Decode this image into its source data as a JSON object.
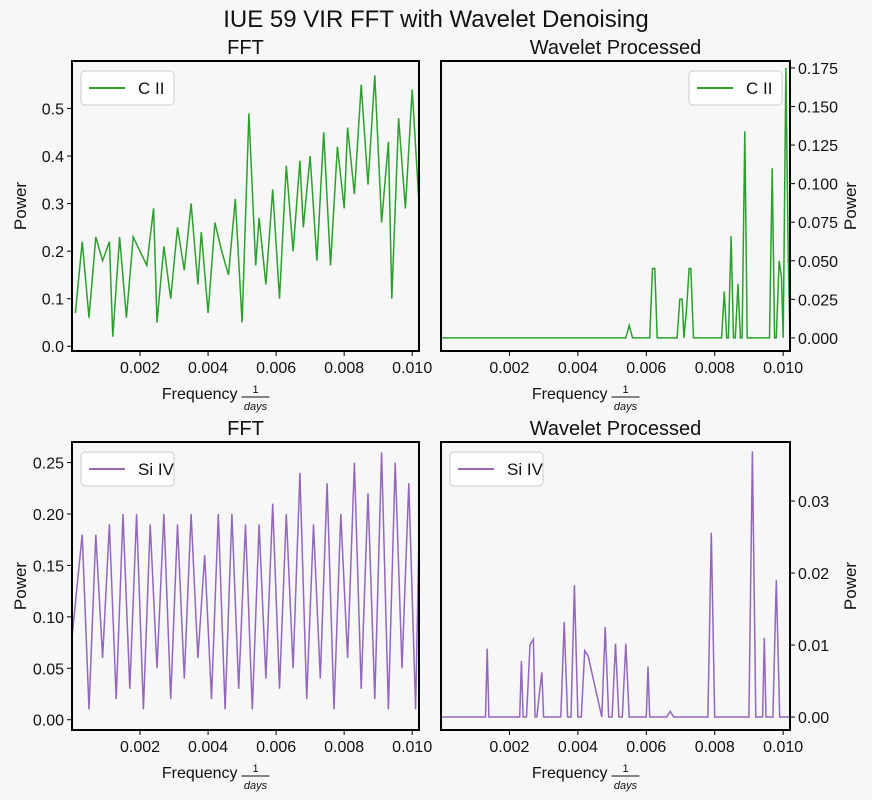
{
  "figure": {
    "title": "IUE 59 VIR FFT with Wavelet Denoising"
  },
  "colors": {
    "c2": "#2ca02c",
    "si4": "#9467bd"
  },
  "chart_data": [
    {
      "type": "line",
      "title": "FFT",
      "xlabel": "Frequency",
      "xlabel_frac_num": "1",
      "xlabel_frac_den": "days",
      "ylabel": "Power",
      "xlim": [
        0.0,
        0.0102
      ],
      "ylim": [
        -0.01,
        0.6
      ],
      "xticks": [
        0.002,
        0.004,
        0.006,
        0.008,
        0.01
      ],
      "xtick_labels": [
        "0.002",
        "0.004",
        "0.006",
        "0.008",
        "0.010"
      ],
      "yticks": [
        0.0,
        0.1,
        0.2,
        0.3,
        0.4,
        0.5
      ],
      "ytick_labels": [
        "0.0",
        "0.1",
        "0.2",
        "0.3",
        "0.4",
        "0.5"
      ],
      "yaxis_side": "left",
      "legend": "top-left",
      "series": [
        {
          "name": "C II",
          "color": "#2ca02c",
          "x": [
            0.0001,
            0.0003,
            0.0005,
            0.0007,
            0.0009,
            0.0011,
            0.0012,
            0.0014,
            0.0016,
            0.0018,
            0.002,
            0.0022,
            0.0024,
            0.0025,
            0.0027,
            0.0029,
            0.0031,
            0.0033,
            0.0035,
            0.0037,
            0.0038,
            0.004,
            0.0042,
            0.0044,
            0.0046,
            0.0048,
            0.005,
            0.0052,
            0.0054,
            0.0055,
            0.0057,
            0.0059,
            0.0061,
            0.0063,
            0.0065,
            0.0067,
            0.0068,
            0.007,
            0.0072,
            0.0074,
            0.0076,
            0.0078,
            0.008,
            0.0081,
            0.0083,
            0.0085,
            0.0087,
            0.0089,
            0.0091,
            0.0093,
            0.0094,
            0.0096,
            0.0098,
            0.01,
            0.0102
          ],
          "values": [
            0.07,
            0.22,
            0.06,
            0.23,
            0.18,
            0.22,
            0.02,
            0.23,
            0.06,
            0.23,
            0.2,
            0.17,
            0.29,
            0.05,
            0.21,
            0.1,
            0.25,
            0.16,
            0.3,
            0.13,
            0.24,
            0.07,
            0.26,
            0.2,
            0.15,
            0.31,
            0.05,
            0.49,
            0.17,
            0.27,
            0.13,
            0.33,
            0.1,
            0.38,
            0.2,
            0.39,
            0.25,
            0.4,
            0.18,
            0.45,
            0.17,
            0.42,
            0.29,
            0.46,
            0.32,
            0.55,
            0.34,
            0.57,
            0.26,
            0.43,
            0.1,
            0.48,
            0.29,
            0.54,
            0.3
          ]
        }
      ]
    },
    {
      "type": "line",
      "title": "Wavelet Processed",
      "xlabel": "Frequency",
      "xlabel_frac_num": "1",
      "xlabel_frac_den": "days",
      "ylabel": "Power",
      "xlim": [
        0.0,
        0.0102
      ],
      "ylim": [
        -0.0085,
        0.1795
      ],
      "xticks": [
        0.002,
        0.004,
        0.006,
        0.008,
        0.01
      ],
      "xtick_labels": [
        "0.002",
        "0.004",
        "0.006",
        "0.008",
        "0.010"
      ],
      "yticks": [
        0.0,
        0.025,
        0.05,
        0.075,
        0.1,
        0.125,
        0.15,
        0.175
      ],
      "ytick_labels": [
        "0.000",
        "0.025",
        "0.050",
        "0.075",
        "0.100",
        "0.125",
        "0.150",
        "0.175"
      ],
      "yaxis_side": "right",
      "legend": "top-right",
      "series": [
        {
          "name": "C II",
          "color": "#2ca02c",
          "x": [
            0.0,
            0.0054,
            0.0055,
            0.0056,
            0.0061,
            0.00618,
            0.00625,
            0.00632,
            0.0069,
            0.00698,
            0.00705,
            0.0071,
            0.00718,
            0.00725,
            0.0073,
            0.00738,
            0.00745,
            0.0082,
            0.00828,
            0.00835,
            0.0084,
            0.00848,
            0.00855,
            0.0086,
            0.00868,
            0.00875,
            0.0088,
            0.00888,
            0.00895,
            0.0096,
            0.00968,
            0.00975,
            0.0098,
            0.00988,
            0.00995,
            0.01,
            0.01008,
            0.01015,
            0.0102
          ],
          "values": [
            0.0,
            0.0,
            0.008,
            0.0,
            0.0,
            0.045,
            0.045,
            0.0,
            0.0,
            0.025,
            0.025,
            0.0,
            0.02,
            0.045,
            0.045,
            0.0,
            0.0,
            0.0,
            0.03,
            0.0,
            0.0,
            0.066,
            0.0,
            0.0,
            0.035,
            0.0,
            0.0,
            0.134,
            0.0,
            0.0,
            0.11,
            0.0,
            0.0,
            0.05,
            0.04,
            0.0,
            0.175,
            0.05,
            0.0
          ]
        }
      ]
    },
    {
      "type": "line",
      "title": "FFT",
      "xlabel": "Frequency",
      "xlabel_frac_num": "1",
      "xlabel_frac_den": "days",
      "ylabel": "Power",
      "xlim": [
        0.0,
        0.0102
      ],
      "ylim": [
        -0.01,
        0.27
      ],
      "xticks": [
        0.002,
        0.004,
        0.006,
        0.008,
        0.01
      ],
      "xtick_labels": [
        "0.002",
        "0.004",
        "0.006",
        "0.008",
        "0.010"
      ],
      "yticks": [
        0.0,
        0.05,
        0.1,
        0.15,
        0.2,
        0.25
      ],
      "ytick_labels": [
        "0.00",
        "0.05",
        "0.10",
        "0.15",
        "0.20",
        "0.25"
      ],
      "yaxis_side": "left",
      "legend": "top-left",
      "series": [
        {
          "name": "Si IV",
          "color": "#9467bd",
          "x": [
            0.0,
            0.0003,
            0.0005,
            0.0007,
            0.0009,
            0.0011,
            0.0013,
            0.0015,
            0.0017,
            0.0019,
            0.0021,
            0.0023,
            0.0025,
            0.0027,
            0.0029,
            0.0031,
            0.0033,
            0.0035,
            0.0037,
            0.0039,
            0.0041,
            0.0043,
            0.0045,
            0.0047,
            0.0049,
            0.0051,
            0.0053,
            0.0055,
            0.0057,
            0.0059,
            0.0061,
            0.0063,
            0.0065,
            0.0067,
            0.0069,
            0.0071,
            0.0073,
            0.0075,
            0.0077,
            0.0079,
            0.0081,
            0.0083,
            0.0085,
            0.0087,
            0.0089,
            0.0091,
            0.0093,
            0.0095,
            0.0097,
            0.0099,
            0.0101,
            0.0102
          ],
          "values": [
            0.08,
            0.18,
            0.01,
            0.18,
            0.06,
            0.19,
            0.02,
            0.2,
            0.03,
            0.2,
            0.01,
            0.19,
            0.05,
            0.2,
            0.02,
            0.19,
            0.04,
            0.2,
            0.06,
            0.16,
            0.02,
            0.2,
            0.01,
            0.2,
            0.03,
            0.19,
            0.01,
            0.19,
            0.04,
            0.21,
            0.03,
            0.2,
            0.05,
            0.24,
            0.02,
            0.19,
            0.04,
            0.23,
            0.01,
            0.2,
            0.06,
            0.25,
            0.03,
            0.22,
            0.02,
            0.26,
            0.01,
            0.25,
            0.05,
            0.23,
            0.01,
            0.18
          ]
        }
      ]
    },
    {
      "type": "line",
      "title": "Wavelet Processed",
      "xlabel": "Frequency",
      "xlabel_frac_num": "1",
      "xlabel_frac_den": "days",
      "ylabel": "Power",
      "xlim": [
        0.0,
        0.0102
      ],
      "ylim": [
        -0.0018,
        0.0382
      ],
      "xticks": [
        0.002,
        0.004,
        0.006,
        0.008,
        0.01
      ],
      "xtick_labels": [
        "0.002",
        "0.004",
        "0.006",
        "0.008",
        "0.010"
      ],
      "yticks": [
        0.0,
        0.01,
        0.02,
        0.03
      ],
      "ytick_labels": [
        "0.00",
        "0.01",
        "0.02",
        "0.03"
      ],
      "yaxis_side": "right",
      "legend": "top-left",
      "series": [
        {
          "name": "Si IV",
          "color": "#9467bd",
          "x": [
            0.0,
            0.0013,
            0.00135,
            0.0014,
            0.0023,
            0.00235,
            0.0024,
            0.0025,
            0.0026,
            0.0027,
            0.00275,
            0.0028,
            0.0029,
            0.00295,
            0.003,
            0.0035,
            0.0036,
            0.0037,
            0.0038,
            0.0039,
            0.004,
            0.0041,
            0.0042,
            0.0043,
            0.0047,
            0.0048,
            0.0049,
            0.005,
            0.0051,
            0.0052,
            0.0053,
            0.0054,
            0.0055,
            0.006,
            0.00605,
            0.0061,
            0.0066,
            0.0067,
            0.0068,
            0.0078,
            0.0079,
            0.008,
            0.009,
            0.0091,
            0.0092,
            0.0094,
            0.00945,
            0.0095,
            0.0097,
            0.0098,
            0.0099,
            0.0102
          ],
          "values": [
            0.0,
            0.0,
            0.0095,
            0.0,
            0.0,
            0.0078,
            0.0,
            0.0,
            0.01,
            0.0108,
            0.0,
            0.0,
            0.0042,
            0.0062,
            0.0,
            0.0,
            0.0132,
            0.0,
            0.0,
            0.0183,
            0.0,
            0.0,
            0.0092,
            0.0085,
            0.0,
            0.0125,
            0.0,
            0.0,
            0.0102,
            0.0,
            0.0,
            0.0102,
            0.0,
            0.0,
            0.007,
            0.0,
            0.0,
            0.0008,
            0.0,
            0.0,
            0.0256,
            0.0,
            0.0,
            0.0369,
            0.0,
            0.0,
            0.011,
            0.0,
            0.0,
            0.019,
            0.0,
            0.0
          ]
        }
      ]
    }
  ]
}
